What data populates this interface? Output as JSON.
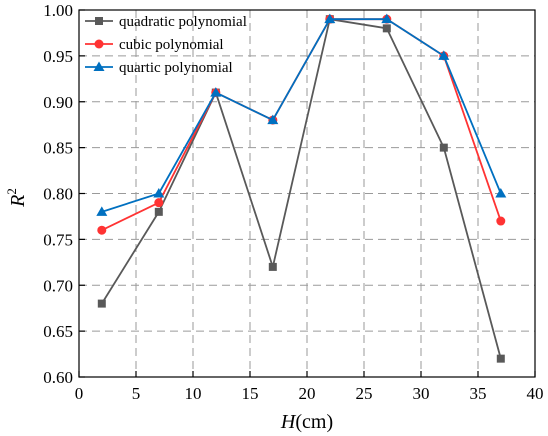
{
  "chart_data": {
    "type": "line",
    "x": [
      2,
      7,
      12,
      17,
      22,
      27,
      32,
      37
    ],
    "series": [
      {
        "name": "quadratic polynomial",
        "values": [
          0.68,
          0.78,
          0.91,
          0.72,
          0.99,
          0.98,
          0.85,
          0.62
        ],
        "color": "#595959",
        "marker": "square"
      },
      {
        "name": "cubic polynomial",
        "values": [
          0.76,
          0.79,
          0.91,
          0.88,
          0.99,
          0.99,
          0.95,
          0.77
        ],
        "color": "#ff3333",
        "marker": "circle"
      },
      {
        "name": "quartic polynomial",
        "values": [
          0.78,
          0.8,
          0.91,
          0.88,
          0.99,
          0.99,
          0.95,
          0.8
        ],
        "color": "#0070c0",
        "marker": "triangle"
      }
    ],
    "xlabel": {
      "italic": "H",
      "rest": "(cm)"
    },
    "ylabel": {
      "base": "R",
      "sup": "2"
    },
    "xlim": [
      0,
      40
    ],
    "ylim": [
      0.6,
      1.0
    ],
    "xticks": [
      "0",
      "5",
      "10",
      "15",
      "20",
      "25",
      "30",
      "35",
      "40"
    ],
    "yticks": [
      "0.60",
      "0.65",
      "0.70",
      "0.75",
      "0.80",
      "0.85",
      "0.90",
      "0.95",
      "1.00"
    ],
    "grid": true,
    "legend_position": "top-left"
  }
}
